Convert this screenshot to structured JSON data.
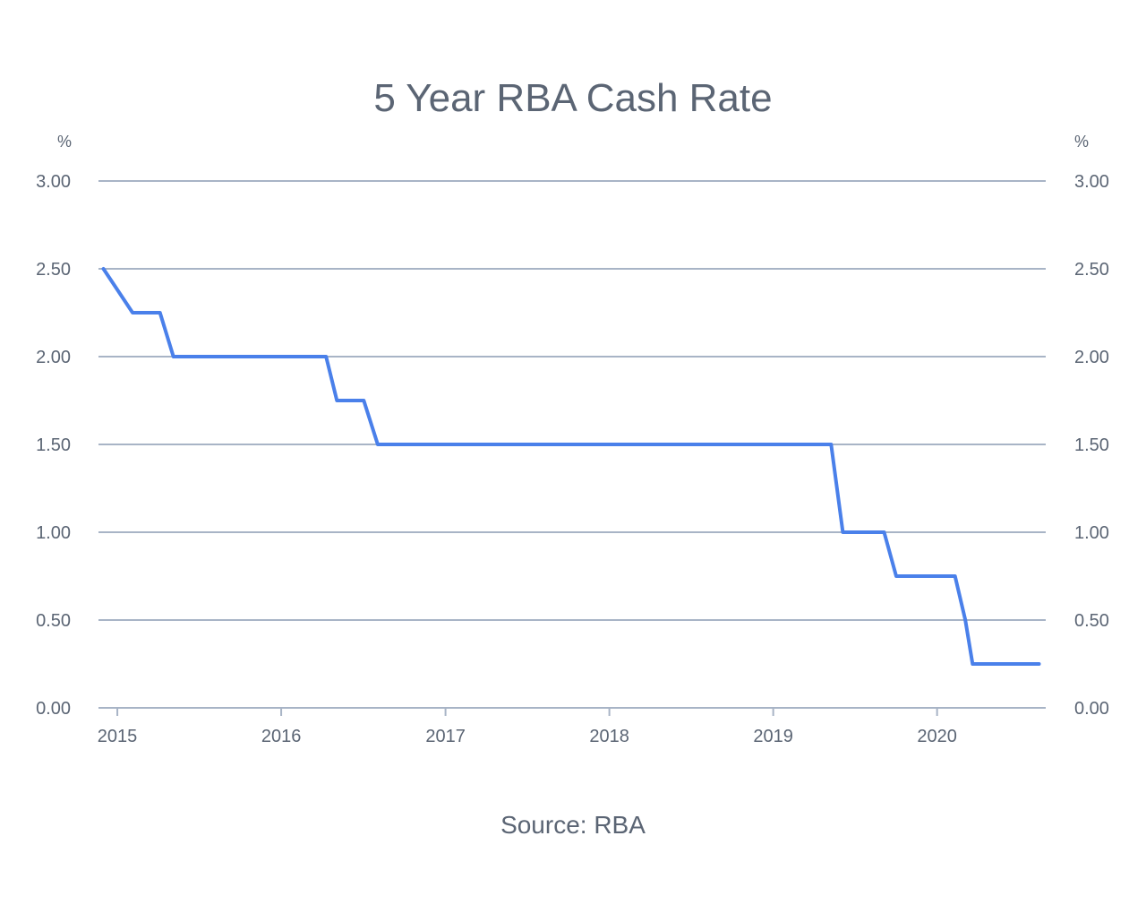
{
  "chart_data": {
    "type": "line",
    "title": "5 Year RBA Cash Rate",
    "source": "Source: RBA",
    "y_unit_left": "%",
    "y_unit_right": "%",
    "ylim": [
      0,
      3
    ],
    "y_ticks": [
      {
        "value": 0,
        "label": "0.00"
      },
      {
        "value": 0.5,
        "label": "0.50"
      },
      {
        "value": 1,
        "label": "1.00"
      },
      {
        "value": 1.5,
        "label": "1.50"
      },
      {
        "value": 2,
        "label": "2.00"
      },
      {
        "value": 2.5,
        "label": "2.50"
      },
      {
        "value": 3,
        "label": "3.00"
      }
    ],
    "xlim": [
      "2014-11-20",
      "2020-08-30"
    ],
    "x_ticks": [
      {
        "value": "2015-01-01",
        "label": "2015"
      },
      {
        "value": "2016-01-01",
        "label": "2016"
      },
      {
        "value": "2017-01-01",
        "label": "2017"
      },
      {
        "value": "2018-01-01",
        "label": "2018"
      },
      {
        "value": "2019-01-01",
        "label": "2019"
      },
      {
        "value": "2020-01-01",
        "label": "2020"
      }
    ],
    "grid": true,
    "series": [
      {
        "color": "#4a80ea",
        "points": [
          {
            "x": "2014-12-01",
            "y": 2.5
          },
          {
            "x": "2015-02-04",
            "y": 2.25
          },
          {
            "x": "2015-04-06",
            "y": 2.25
          },
          {
            "x": "2015-05-06",
            "y": 2.0
          },
          {
            "x": "2016-04-10",
            "y": 2.0
          },
          {
            "x": "2016-05-04",
            "y": 1.75
          },
          {
            "x": "2016-07-03",
            "y": 1.75
          },
          {
            "x": "2016-08-03",
            "y": 1.5
          },
          {
            "x": "2019-05-10",
            "y": 1.5
          },
          {
            "x": "2019-06-05",
            "y": 1.0
          },
          {
            "x": "2019-09-05",
            "y": 1.0
          },
          {
            "x": "2019-10-02",
            "y": 0.75
          },
          {
            "x": "2020-02-10",
            "y": 0.75
          },
          {
            "x": "2020-03-04",
            "y": 0.5
          },
          {
            "x": "2020-03-20",
            "y": 0.25
          },
          {
            "x": "2020-08-15",
            "y": 0.25
          }
        ]
      }
    ]
  }
}
